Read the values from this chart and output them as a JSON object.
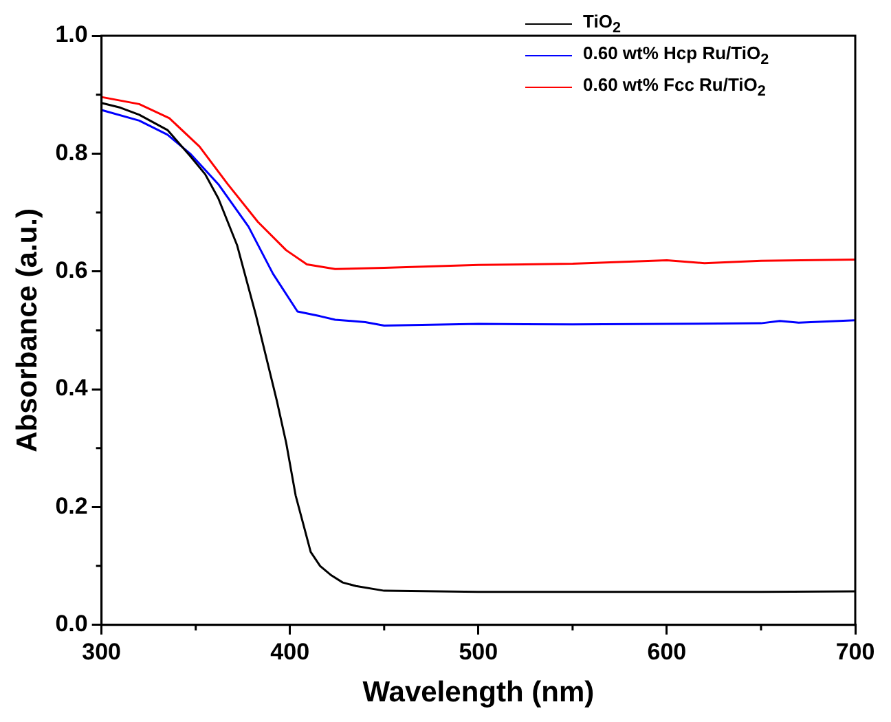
{
  "chart_data": {
    "type": "line",
    "xlabel": "Wavelength (nm)",
    "ylabel": "Absorbance (a.u.)",
    "xlim": [
      300,
      700
    ],
    "xticks": [
      300,
      400,
      500,
      600,
      700
    ],
    "ylim": [
      0,
      1
    ],
    "yticks": [
      {
        "value": 0,
        "label": "0.0"
      },
      0.2,
      0.4,
      0.6,
      0.8,
      {
        "value": 1,
        "label": "1.0"
      }
    ],
    "grid": false,
    "legend": "top right",
    "marker": "none",
    "line_style": "solid",
    "series": [
      {
        "name": "TiO$_{2}$",
        "color": "#000000",
        "x": [
          300,
          310,
          320,
          335,
          347,
          355,
          362,
          372,
          382,
          393,
          398,
          403,
          411,
          416,
          422,
          428,
          435,
          450,
          500,
          550,
          600,
          650,
          700
        ],
        "values": [
          0.886,
          0.878,
          0.866,
          0.84,
          0.796,
          0.765,
          0.724,
          0.644,
          0.525,
          0.381,
          0.309,
          0.22,
          0.124,
          0.1,
          0.084,
          0.072,
          0.066,
          0.058,
          0.056,
          0.056,
          0.056,
          0.056,
          0.057
        ]
      },
      {
        "name": "0.60 wt% Hcp Ru/TiO$_{2}$",
        "color": "#0000ff",
        "x": [
          300,
          320,
          335,
          347,
          362,
          378,
          391,
          404,
          416,
          424,
          440,
          450,
          500,
          550,
          600,
          650,
          660,
          670,
          700
        ],
        "values": [
          0.874,
          0.856,
          0.832,
          0.8,
          0.748,
          0.676,
          0.596,
          0.532,
          0.524,
          0.518,
          0.514,
          0.508,
          0.511,
          0.51,
          0.511,
          0.512,
          0.516,
          0.513,
          0.517
        ]
      },
      {
        "name": "0.60 wt% Fcc Ru/TiO$_{2}$",
        "color": "#ff0000",
        "x": [
          300,
          320,
          336,
          352,
          367,
          383,
          398,
          409,
          424,
          450,
          500,
          550,
          600,
          620,
          650,
          700
        ],
        "values": [
          0.896,
          0.884,
          0.86,
          0.812,
          0.748,
          0.684,
          0.636,
          0.612,
          0.604,
          0.606,
          0.611,
          0.613,
          0.619,
          0.614,
          0.618,
          0.62
        ]
      }
    ]
  }
}
